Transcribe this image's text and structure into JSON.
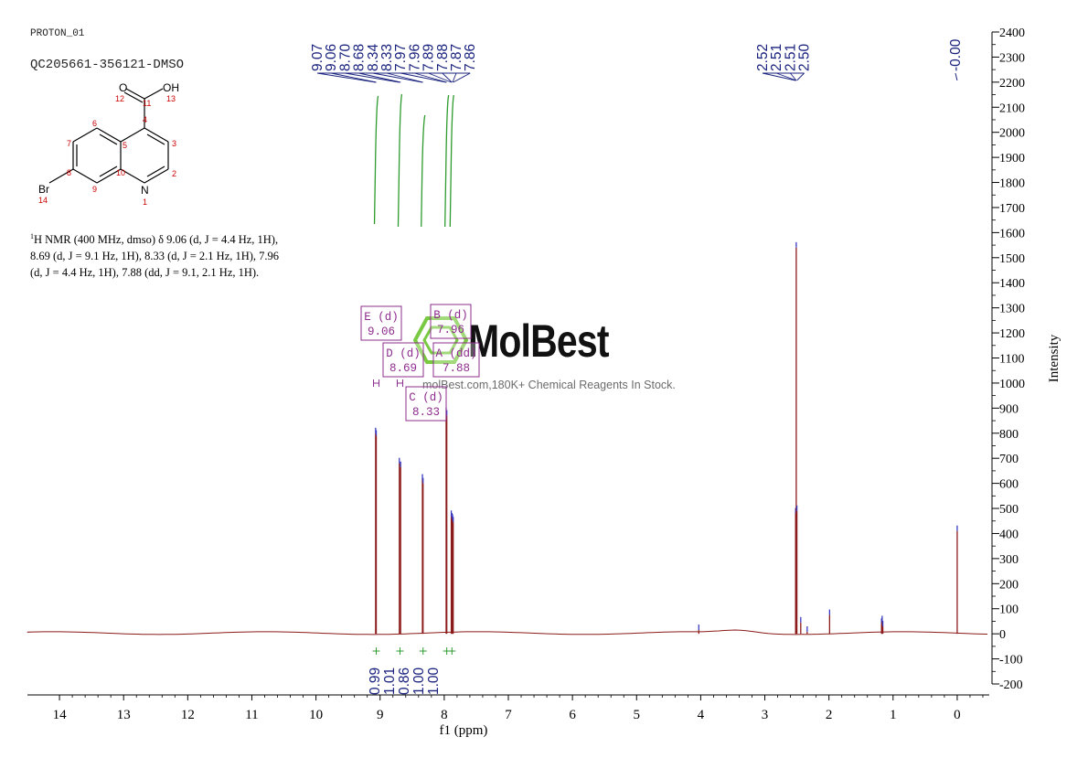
{
  "header": {
    "experiment": "PROTON_01",
    "sample": "QC205661-356121-DMSO"
  },
  "molecule": {
    "atoms": [
      "O",
      "OH",
      "Br",
      "N"
    ],
    "numbers": [
      "1",
      "2",
      "3",
      "4",
      "5",
      "6",
      "7",
      "8",
      "9",
      "10",
      "11",
      "12",
      "13",
      "14"
    ]
  },
  "nmr_summary": {
    "line1": "H NMR (400 MHz, dmso) δ 9.06 (d, J = 4.4 Hz, 1H),",
    "line2": "8.69 (d, J = 9.1 Hz, 1H), 8.33 (d, J = 2.1 Hz, 1H), 7.96",
    "line3": "(d, J = 4.4 Hz, 1H), 7.88 (dd, J = 9.1, 2.1 Hz, 1H)."
  },
  "watermark": {
    "brand": "MolBest",
    "tagline": "molBest.com,180K+ Chemical Reagents In Stock."
  },
  "colors": {
    "spectrum": "#8b1a1a",
    "axis": "#000000",
    "peak_label": "#1a237e",
    "integral_curve": "#2e9b2e",
    "integral_label": "#1a237e",
    "multiplet": "#8e2c8e",
    "molecule_number": "#cc0000",
    "peak_tip": "#3a3ac0"
  },
  "chart_data": {
    "type": "line",
    "title": "",
    "xlabel": "f1 (ppm)",
    "ylabel": "Intensity",
    "xlim": [
      14.5,
      -0.5
    ],
    "ylim": [
      -200,
      2400
    ],
    "x_ticks": [
      14,
      13,
      12,
      11,
      10,
      9,
      8,
      7,
      6,
      5,
      4,
      3,
      2,
      1,
      0
    ],
    "y_ticks": [
      -200,
      -100,
      0,
      100,
      200,
      300,
      400,
      500,
      600,
      700,
      800,
      900,
      1000,
      1100,
      1200,
      1300,
      1400,
      1500,
      1600,
      1700,
      1800,
      1900,
      2000,
      2100,
      2200,
      2300,
      2400
    ],
    "peaks": [
      {
        "ppm": 9.07,
        "height": 800
      },
      {
        "ppm": 9.06,
        "height": 790
      },
      {
        "ppm": 8.7,
        "height": 680
      },
      {
        "ppm": 8.68,
        "height": 665
      },
      {
        "ppm": 8.34,
        "height": 615
      },
      {
        "ppm": 8.33,
        "height": 600
      },
      {
        "ppm": 7.97,
        "height": 880
      },
      {
        "ppm": 7.96,
        "height": 870
      },
      {
        "ppm": 7.89,
        "height": 470
      },
      {
        "ppm": 7.88,
        "height": 460
      },
      {
        "ppm": 7.87,
        "height": 455
      },
      {
        "ppm": 7.86,
        "height": 445
      },
      {
        "ppm": 2.52,
        "height": 480
      },
      {
        "ppm": 2.51,
        "height": 1540
      },
      {
        "ppm": 2.5,
        "height": 490
      },
      {
        "ppm": 4.03,
        "height": 15
      },
      {
        "ppm": 2.44,
        "height": 45
      },
      {
        "ppm": 2.34,
        "height": 8
      },
      {
        "ppm": 1.99,
        "height": 75
      },
      {
        "ppm": 1.18,
        "height": 40
      },
      {
        "ppm": 1.17,
        "height": 50
      },
      {
        "ppm": 1.16,
        "height": 30
      },
      {
        "ppm": 0.0,
        "height": 410
      }
    ],
    "peak_labels_group1": [
      "9.07",
      "9.06",
      "8.70",
      "8.68",
      "8.34",
      "8.33",
      "7.97",
      "7.96",
      "7.89",
      "7.88",
      "7.87",
      "7.86"
    ],
    "peak_labels_group2": [
      "2.52",
      "2.51",
      "2.51",
      "2.50"
    ],
    "peak_labels_group3": [
      "-0.00"
    ],
    "integrals": [
      {
        "ppm": 9.06,
        "value": "0.99"
      },
      {
        "ppm": 8.69,
        "value": "1.01"
      },
      {
        "ppm": 8.33,
        "value": "0.86"
      },
      {
        "ppm": 7.96,
        "value": "1.00"
      },
      {
        "ppm": 7.88,
        "value": "1.00"
      }
    ],
    "multiplets": [
      {
        "id": "E",
        "type": "(d)",
        "shift": "9.06"
      },
      {
        "id": "D",
        "type": "(d)",
        "shift": "8.69"
      },
      {
        "id": "C",
        "type": "(d)",
        "shift": "8.33"
      },
      {
        "id": "B",
        "type": "(d)",
        "shift": "7.96"
      },
      {
        "id": "A",
        "type": "(dd)",
        "shift": "7.88"
      }
    ]
  }
}
